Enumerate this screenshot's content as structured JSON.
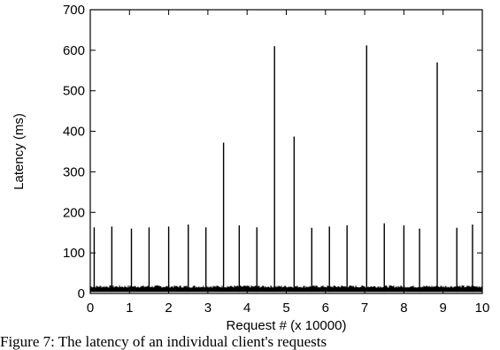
{
  "chart_data": {
    "type": "line",
    "title": "",
    "xlabel": "Request # (x 10000)",
    "ylabel": "Latency (ms)",
    "xlim": [
      0,
      10
    ],
    "ylim": [
      0,
      700
    ],
    "x_ticks": [
      0,
      1,
      2,
      3,
      4,
      5,
      6,
      7,
      8,
      9,
      10
    ],
    "y_ticks": [
      0,
      100,
      200,
      300,
      400,
      500,
      600,
      700
    ],
    "grid": false,
    "legend": "none",
    "line_color": "#000000",
    "baseline_range": [
      4,
      14
    ],
    "series": [
      {
        "x": [
          0.1,
          0.55,
          1.05,
          1.5,
          2.0,
          2.5,
          2.95,
          3.4,
          3.8,
          4.25,
          4.7,
          5.2,
          5.65,
          6.1,
          6.55,
          7.05,
          7.5,
          8.0,
          8.4,
          8.85,
          9.35,
          9.75
        ],
        "values": [
          163,
          165,
          160,
          163,
          165,
          170,
          163,
          372,
          168,
          163,
          610,
          387,
          162,
          165,
          168,
          612,
          173,
          168,
          160,
          570,
          162,
          170
        ]
      }
    ]
  },
  "caption": "Figure 7: The latency of an individual client's requests"
}
